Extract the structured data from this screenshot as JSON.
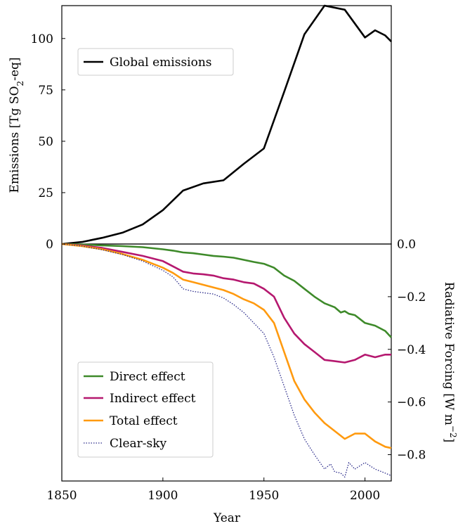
{
  "chart_data": [
    {
      "type": "line",
      "panel": "top",
      "xlabel": "",
      "ylabel": "Emissions [Tg SO2-eq]",
      "ylabel_parts": {
        "pre": "Emissions [Tg SO",
        "sub": "2",
        "post": "-eq]"
      },
      "xlim": [
        1850,
        2013
      ],
      "ylim": [
        0,
        116
      ],
      "yticks": [
        0,
        25,
        50,
        75,
        100
      ],
      "ytick_labels": [
        "0",
        "25",
        "50",
        "75",
        "100"
      ],
      "legend_position": "upper-left",
      "series": [
        {
          "name": "Global emissions",
          "color": "#000000",
          "x": [
            1850,
            1860,
            1870,
            1880,
            1890,
            1900,
            1910,
            1920,
            1930,
            1940,
            1950,
            1960,
            1970,
            1980,
            1990,
            2000,
            2005,
            2010,
            2013
          ],
          "y": [
            0,
            1,
            3,
            5.5,
            9.5,
            16.5,
            26,
            29.5,
            31,
            39,
            46.5,
            74,
            102,
            116,
            114,
            100.5,
            104,
            101.5,
            98.5
          ]
        }
      ]
    },
    {
      "type": "line",
      "panel": "bottom",
      "xlabel": "Year",
      "ylabel": "Radiative Forcing [W m−2]",
      "ylabel_parts": {
        "pre": "Radiative Forcing [W m",
        "sup": "−2",
        "post": "]"
      },
      "xlim": [
        1850,
        2013
      ],
      "ylim": [
        -0.9,
        0
      ],
      "xticks": [
        1850,
        1900,
        1950,
        2000
      ],
      "xtick_labels": [
        "1850",
        "1900",
        "1950",
        "2000"
      ],
      "yticks": [
        0,
        -0.2,
        -0.4,
        -0.6,
        -0.8
      ],
      "ytick_labels": [
        "0.0",
        "−0.2",
        "−0.4",
        "−0.6",
        "−0.8"
      ],
      "legend_position": "lower-left",
      "series": [
        {
          "name": "Direct effect",
          "color": "#3e8a2a",
          "style": "solid",
          "x": [
            1850,
            1860,
            1870,
            1880,
            1890,
            1900,
            1905,
            1910,
            1915,
            1920,
            1925,
            1930,
            1935,
            1940,
            1945,
            1950,
            1955,
            1960,
            1965,
            1970,
            1975,
            1980,
            1985,
            1988,
            1990,
            1992,
            1995,
            2000,
            2005,
            2010,
            2013
          ],
          "y": [
            0,
            -0.002,
            -0.005,
            -0.008,
            -0.012,
            -0.02,
            -0.025,
            -0.032,
            -0.035,
            -0.04,
            -0.045,
            -0.048,
            -0.052,
            -0.06,
            -0.068,
            -0.075,
            -0.09,
            -0.12,
            -0.14,
            -0.17,
            -0.2,
            -0.225,
            -0.24,
            -0.26,
            -0.255,
            -0.265,
            -0.27,
            -0.3,
            -0.31,
            -0.33,
            -0.355
          ]
        },
        {
          "name": "Indirect effect",
          "color": "#b5186f",
          "style": "solid",
          "x": [
            1850,
            1860,
            1870,
            1880,
            1890,
            1900,
            1905,
            1910,
            1915,
            1920,
            1925,
            1930,
            1935,
            1940,
            1945,
            1950,
            1955,
            1960,
            1965,
            1970,
            1975,
            1980,
            1985,
            1990,
            1995,
            2000,
            2005,
            2010,
            2013
          ],
          "y": [
            0,
            -0.006,
            -0.015,
            -0.03,
            -0.045,
            -0.065,
            -0.085,
            -0.105,
            -0.112,
            -0.115,
            -0.12,
            -0.13,
            -0.135,
            -0.145,
            -0.15,
            -0.17,
            -0.2,
            -0.28,
            -0.34,
            -0.38,
            -0.41,
            -0.44,
            -0.445,
            -0.45,
            -0.44,
            -0.42,
            -0.43,
            -0.42,
            -0.42
          ]
        },
        {
          "name": "Total effect",
          "color": "#ff9a0f",
          "style": "solid",
          "x": [
            1850,
            1860,
            1870,
            1880,
            1890,
            1900,
            1905,
            1910,
            1915,
            1920,
            1925,
            1930,
            1935,
            1940,
            1945,
            1950,
            1955,
            1960,
            1965,
            1970,
            1975,
            1980,
            1985,
            1990,
            1995,
            2000,
            2005,
            2010,
            2013
          ],
          "y": [
            0,
            -0.008,
            -0.02,
            -0.038,
            -0.06,
            -0.09,
            -0.11,
            -0.135,
            -0.145,
            -0.155,
            -0.165,
            -0.175,
            -0.19,
            -0.21,
            -0.225,
            -0.25,
            -0.3,
            -0.41,
            -0.52,
            -0.59,
            -0.64,
            -0.68,
            -0.71,
            -0.74,
            -0.72,
            -0.72,
            -0.75,
            -0.77,
            -0.775
          ]
        },
        {
          "name": "Clear-sky",
          "color": "#2a2a8a",
          "style": "dotted",
          "x": [
            1850,
            1860,
            1870,
            1880,
            1890,
            1900,
            1905,
            1910,
            1915,
            1920,
            1925,
            1930,
            1935,
            1940,
            1945,
            1950,
            1955,
            1960,
            1965,
            1970,
            1975,
            1980,
            1983,
            1985,
            1988,
            1990,
            1992,
            1995,
            1998,
            2000,
            2003,
            2005,
            2010,
            2013
          ],
          "y": [
            0,
            -0.008,
            -0.022,
            -0.04,
            -0.065,
            -0.1,
            -0.125,
            -0.17,
            -0.18,
            -0.185,
            -0.19,
            -0.205,
            -0.23,
            -0.26,
            -0.3,
            -0.34,
            -0.43,
            -0.54,
            -0.65,
            -0.74,
            -0.8,
            -0.855,
            -0.835,
            -0.865,
            -0.87,
            -0.885,
            -0.83,
            -0.855,
            -0.84,
            -0.83,
            -0.845,
            -0.855,
            -0.87,
            -0.88
          ]
        }
      ]
    }
  ]
}
